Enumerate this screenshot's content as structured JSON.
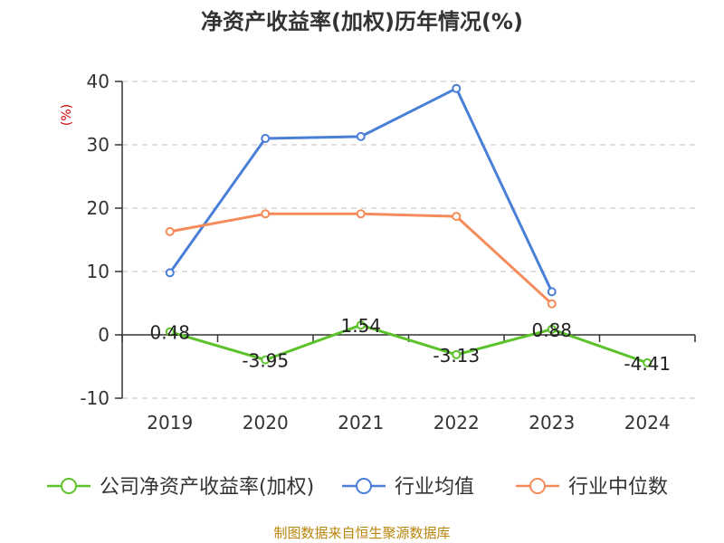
{
  "chart_data": {
    "type": "line",
    "title": "净资产收益率(加权)历年情况(%)",
    "yunit": "(%)",
    "categories": [
      "2019",
      "2020",
      "2021",
      "2022",
      "2023",
      "2024"
    ],
    "ylim": [
      -10,
      40
    ],
    "yticks": [
      -10,
      0,
      10,
      20,
      30,
      40
    ],
    "grid": true,
    "legend_position": "bottom",
    "series": [
      {
        "name": "公司净资产收益率(加权)",
        "color": "#5cc22a",
        "values": [
          0.48,
          -3.95,
          1.54,
          -3.13,
          0.88,
          -4.41
        ],
        "labels": [
          "0.48",
          "-3.95",
          "1.54",
          "-3.13",
          "0.88",
          "-4.41"
        ]
      },
      {
        "name": "行业均值",
        "color": "#4a7fd8",
        "values": [
          9.8,
          31.0,
          31.3,
          38.9,
          6.8,
          null
        ]
      },
      {
        "name": "行业中位数",
        "color": "#f58b5a",
        "values": [
          16.3,
          19.1,
          19.1,
          18.7,
          4.9,
          null
        ]
      }
    ],
    "source": "制图数据来自恒生聚源数据库"
  }
}
